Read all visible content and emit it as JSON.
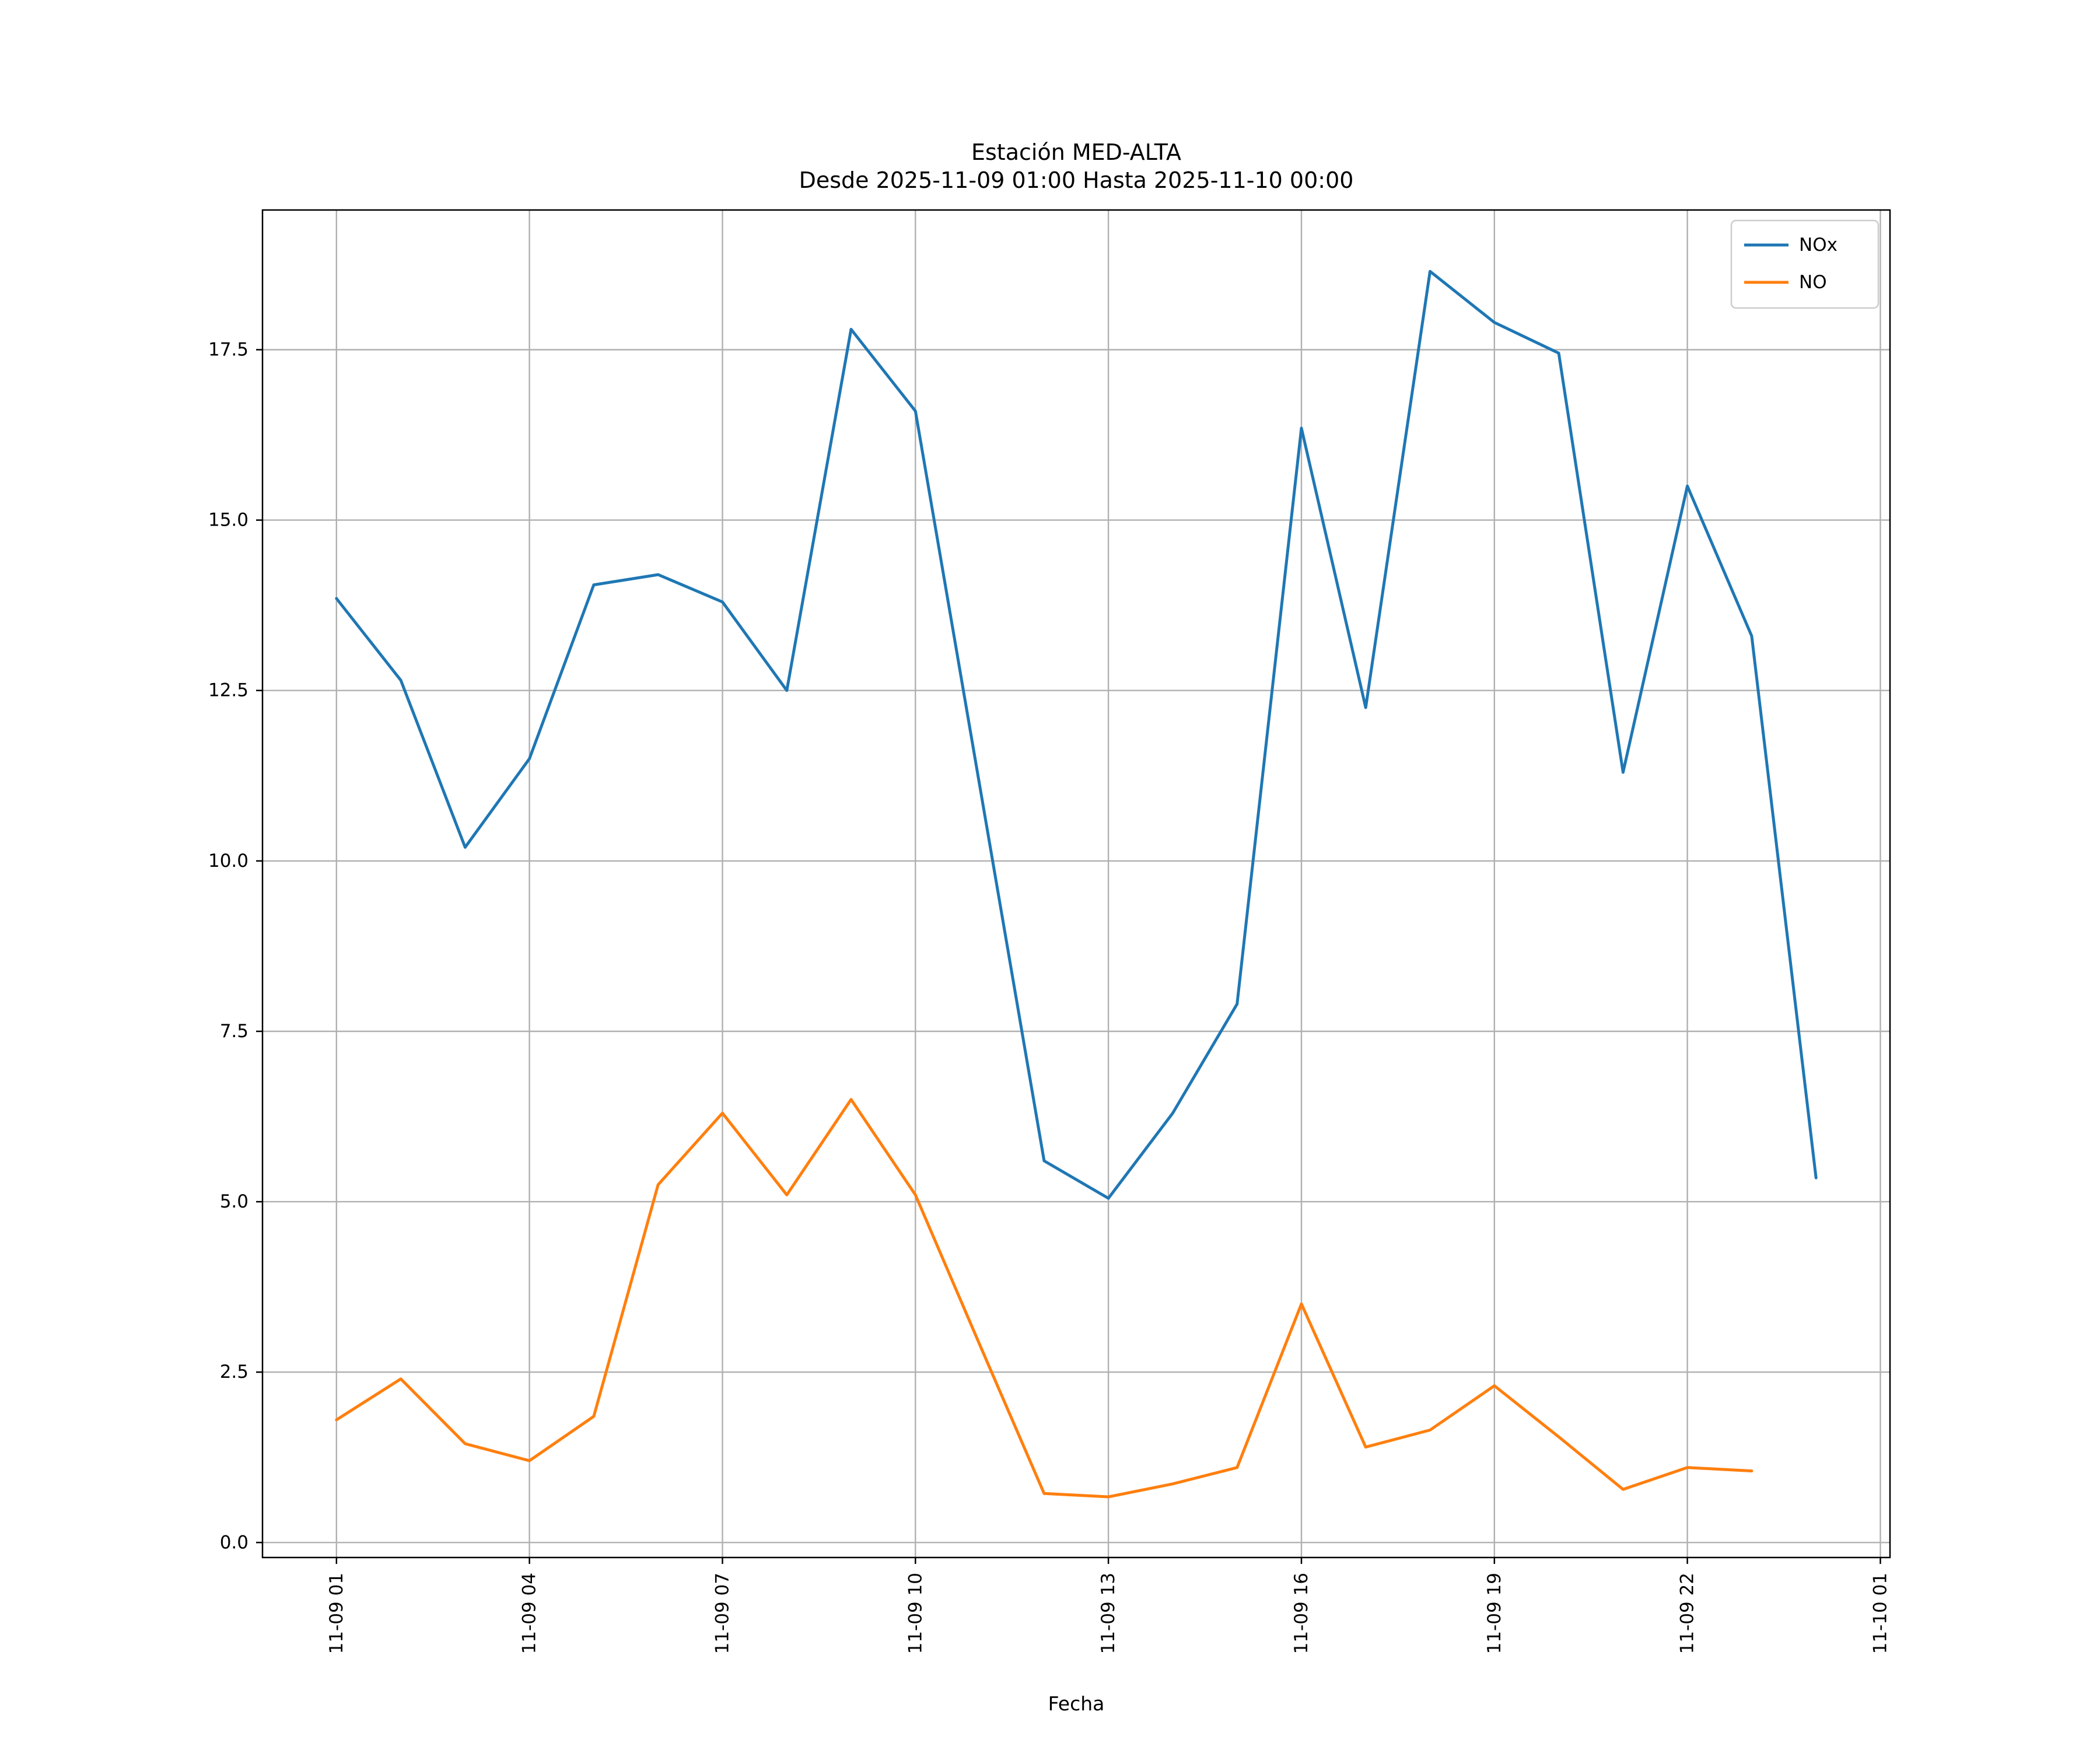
{
  "title": "Estación MED-ALTA",
  "subtitle": "Desde 2025-11-09 01:00 Hasta 2025-11-10 00:00",
  "colors": {
    "background": "#ffffff",
    "grid": "#b0b0b0",
    "axis": "#000000",
    "legend_border": "#cccccc",
    "nox_line": "#1f77b4",
    "no_line": "#ff7f0e"
  },
  "chart_data": {
    "type": "line",
    "title": "Estación MED-ALTA",
    "subtitle": "Desde 2025-11-09 01:00 Hasta 2025-11-10 00:00",
    "xlabel": "Fecha",
    "ylabel": "",
    "grid": true,
    "legend_position": "upper right",
    "xlim": [
      -0.15,
      25.15
    ],
    "ylim": [
      -0.22,
      19.55
    ],
    "x_ticks": {
      "positions": [
        1,
        4,
        7,
        10,
        13,
        16,
        19,
        22,
        25
      ],
      "labels": [
        "11-09 01",
        "11-09 04",
        "11-09 07",
        "11-09 10",
        "11-09 13",
        "11-09 16",
        "11-09 19",
        "11-09 22",
        "11-10 01"
      ],
      "rotation": 90
    },
    "y_ticks": {
      "positions": [
        0.0,
        2.5,
        5.0,
        7.5,
        10.0,
        12.5,
        15.0,
        17.5
      ],
      "labels": [
        "0.0",
        "2.5",
        "5.0",
        "7.5",
        "10.0",
        "12.5",
        "15.0",
        "17.5"
      ]
    },
    "series": [
      {
        "name": "NOx",
        "color": "#1f77b4",
        "x": [
          1,
          2,
          3,
          4,
          5,
          6,
          7,
          8,
          9,
          10,
          11,
          12,
          13,
          14,
          15,
          16,
          17,
          18,
          19,
          20,
          21,
          22,
          23,
          24
        ],
        "values": [
          13.85,
          12.65,
          10.2,
          11.5,
          14.05,
          14.2,
          13.8,
          12.5,
          17.8,
          16.6,
          11.1,
          5.6,
          5.05,
          6.3,
          7.9,
          16.35,
          12.25,
          18.65,
          17.9,
          17.45,
          11.3,
          15.5,
          13.3,
          5.35
        ]
      },
      {
        "name": "NO",
        "color": "#ff7f0e",
        "x": [
          1,
          2,
          3,
          4,
          5,
          6,
          7,
          8,
          9,
          10,
          11,
          12,
          13,
          14,
          15,
          16,
          17,
          18,
          19,
          20,
          21,
          22,
          23
        ],
        "values": [
          1.8,
          2.4,
          1.45,
          1.2,
          1.85,
          5.25,
          6.3,
          5.1,
          6.5,
          5.1,
          2.9,
          0.72,
          0.67,
          0.86,
          1.1,
          3.5,
          1.4,
          1.65,
          2.3,
          1.55,
          0.78,
          1.1,
          1.05
        ]
      }
    ]
  }
}
